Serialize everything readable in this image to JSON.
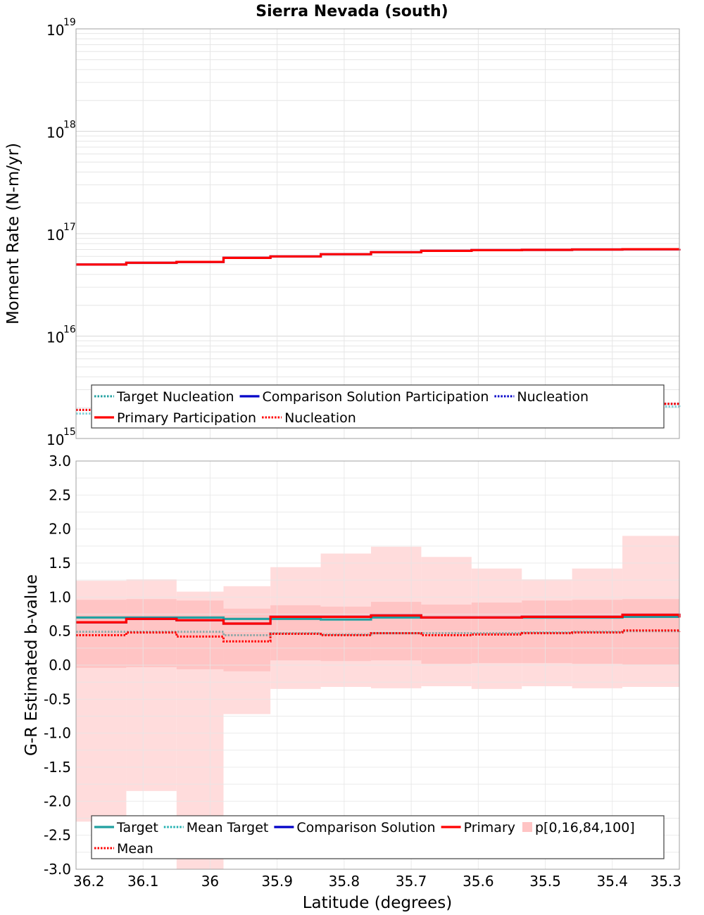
{
  "figure": {
    "title": "Sierra Nevada (south)",
    "xlabel": "Latitude (degrees)"
  },
  "colors": {
    "target": "#20a0a0",
    "mean_target": "#20b0b0",
    "comparison": "#0000c8",
    "primary": "#ff0000",
    "mean": "#ff0000",
    "band_outer": "#ffdcdc",
    "band_inner": "#ffc4c4",
    "grid": "#e6e6e6"
  },
  "chart_data": [
    {
      "type": "line",
      "panel": "moment_rate",
      "ylabel": "Moment Rate (N-m/yr)",
      "yscale": "log",
      "ylim": [
        1000000000000000.0,
        1e+19
      ],
      "xlim": [
        36.2,
        35.3
      ],
      "x_ticks": [
        "36.2",
        "36.1",
        "36",
        "35.9",
        "35.8",
        "35.7",
        "35.6",
        "35.5",
        "35.4",
        "35.3"
      ],
      "y_ticks": [
        {
          "base": "10",
          "exp": "15"
        },
        {
          "base": "10",
          "exp": "16"
        },
        {
          "base": "10",
          "exp": "17"
        },
        {
          "base": "10",
          "exp": "18"
        },
        {
          "base": "10",
          "exp": "19"
        }
      ],
      "x_bins": [
        36.2,
        36.125,
        36.05,
        35.98,
        35.91,
        35.835,
        35.76,
        35.685,
        35.61,
        35.535,
        35.46,
        35.385,
        35.3
      ],
      "series": [
        {
          "name": "Target Nucleation",
          "key": "target",
          "style": "dotted",
          "values": [
            1750000000000000.0,
            1780000000000000.0,
            1800000000000000.0,
            1780000000000000.0,
            1760000000000000.0,
            1950000000000000.0,
            2000000000000000.0,
            1980000000000000.0,
            1920000000000000.0,
            1960000000000000.0,
            2020000000000000.0,
            2050000000000000.0,
            2020000000000000.0
          ]
        },
        {
          "name": "Comparison Solution Participation",
          "key": "comparison",
          "style": "solid",
          "values": [
            5e+16,
            5.2e+16,
            5.3e+16,
            5.8e+16,
            6e+16,
            6.3e+16,
            6.6e+16,
            6.8e+16,
            6.9e+16,
            6.95e+16,
            7e+16,
            7.05e+16,
            7.1e+16
          ]
        },
        {
          "name": "Nucleation",
          "key": "comparison",
          "style": "dotted",
          "values": [
            1900000000000000.0,
            1950000000000000.0,
            2000000000000000.0,
            2050000000000000.0,
            1950000000000000.0,
            2100000000000000.0,
            2150000000000000.0,
            2120000000000000.0,
            2080000000000000.0,
            2100000000000000.0,
            2150000000000000.0,
            2180000000000000.0,
            2150000000000000.0
          ]
        },
        {
          "name": "Primary Participation",
          "key": "primary",
          "style": "solid",
          "values": [
            5e+16,
            5.2e+16,
            5.3e+16,
            5.8e+16,
            6e+16,
            6.3e+16,
            6.6e+16,
            6.8e+16,
            6.9e+16,
            6.95e+16,
            7e+16,
            7.05e+16,
            7.1e+16
          ]
        },
        {
          "name": "Nucleation",
          "key": "primary",
          "style": "dotted",
          "values": [
            1900000000000000.0,
            1950000000000000.0,
            2000000000000000.0,
            2050000000000000.0,
            1950000000000000.0,
            2100000000000000.0,
            2150000000000000.0,
            2120000000000000.0,
            2080000000000000.0,
            2100000000000000.0,
            2150000000000000.0,
            2180000000000000.0,
            2150000000000000.0
          ]
        }
      ],
      "legend": {
        "placement": "bottom",
        "rows": [
          [
            {
              "label": "Target Nucleation",
              "key": "target",
              "style": "dotted"
            },
            {
              "label": "Comparison Solution Participation",
              "key": "comparison",
              "style": "solid"
            },
            {
              "label": "Nucleation",
              "key": "comparison",
              "style": "dotted"
            }
          ],
          [
            {
              "label": "Primary Participation",
              "key": "primary",
              "style": "solid"
            },
            {
              "label": "Nucleation",
              "key": "primary",
              "style": "dotted"
            }
          ]
        ]
      }
    },
    {
      "type": "line",
      "panel": "b_value",
      "ylabel": "G-R Estimated b-value",
      "yscale": "linear",
      "ylim": [
        -3.0,
        3.0
      ],
      "xlim": [
        36.2,
        35.3
      ],
      "x_ticks": [
        "36.2",
        "36.1",
        "36",
        "35.9",
        "35.8",
        "35.7",
        "35.6",
        "35.5",
        "35.4",
        "35.3"
      ],
      "y_ticks": [
        "3.0",
        "2.5",
        "2.0",
        "1.5",
        "1.0",
        "0.5",
        "0.0",
        "-0.5",
        "-1.0",
        "-1.5",
        "-2.0",
        "-2.5",
        "-3.0"
      ],
      "x_bins": [
        36.2,
        36.125,
        36.05,
        35.98,
        35.91,
        35.835,
        35.76,
        35.685,
        35.61,
        35.535,
        35.46,
        35.385,
        35.3
      ],
      "bands": {
        "p0": [
          -2.3,
          -1.85,
          -3.0,
          -0.72,
          -0.35,
          -0.32,
          -0.34,
          -0.31,
          -0.35,
          -0.31,
          -0.34,
          -0.32,
          -0.4
        ],
        "p16": [
          -0.04,
          -0.03,
          -0.06,
          -0.09,
          0.07,
          0.06,
          0.07,
          0.02,
          0.03,
          0.03,
          0.02,
          0.01,
          0.0
        ],
        "p84": [
          0.96,
          0.97,
          0.95,
          0.83,
          0.88,
          0.86,
          0.93,
          0.89,
          0.92,
          0.95,
          0.96,
          0.97,
          0.96
        ],
        "p100": [
          1.24,
          1.26,
          1.08,
          1.16,
          1.44,
          1.64,
          1.74,
          1.59,
          1.42,
          1.26,
          1.42,
          1.9,
          1.93
        ]
      },
      "series": [
        {
          "name": "Target",
          "key": "target",
          "style": "solid",
          "values": [
            0.7,
            0.7,
            0.7,
            0.68,
            0.68,
            0.67,
            0.7,
            0.7,
            0.7,
            0.7,
            0.7,
            0.71,
            0.71
          ]
        },
        {
          "name": "Mean Target",
          "key": "mean_target",
          "style": "dotted",
          "values": [
            0.49,
            0.49,
            0.49,
            0.44,
            0.47,
            0.45,
            0.47,
            0.47,
            0.47,
            0.48,
            0.49,
            0.5,
            0.49
          ]
        },
        {
          "name": "Comparison Solution",
          "key": "comparison",
          "style": "solid",
          "values": [
            0.63,
            0.68,
            0.66,
            0.61,
            0.71,
            0.71,
            0.73,
            0.7,
            0.7,
            0.71,
            0.71,
            0.74,
            0.7
          ]
        },
        {
          "name": "Primary",
          "key": "primary",
          "style": "solid",
          "values": [
            0.63,
            0.68,
            0.66,
            0.61,
            0.71,
            0.71,
            0.73,
            0.7,
            0.7,
            0.71,
            0.71,
            0.74,
            0.7
          ]
        },
        {
          "name": "Mean",
          "key": "mean",
          "style": "dotted",
          "values": [
            0.44,
            0.48,
            0.42,
            0.35,
            0.46,
            0.44,
            0.47,
            0.44,
            0.45,
            0.47,
            0.48,
            0.51,
            0.49
          ]
        }
      ],
      "legend": {
        "placement": "bottom",
        "rows": [
          [
            {
              "label": "Target",
              "key": "target",
              "style": "solid"
            },
            {
              "label": "Mean Target",
              "key": "mean_target",
              "style": "dotted"
            },
            {
              "label": "Comparison Solution",
              "key": "comparison",
              "style": "solid"
            },
            {
              "label": "Primary",
              "key": "primary",
              "style": "solid"
            },
            {
              "label": "p[0,16,84,100]",
              "key": "band_outer",
              "style": "swatch"
            }
          ],
          [
            {
              "label": "Mean",
              "key": "mean",
              "style": "dotted"
            }
          ]
        ]
      }
    }
  ]
}
